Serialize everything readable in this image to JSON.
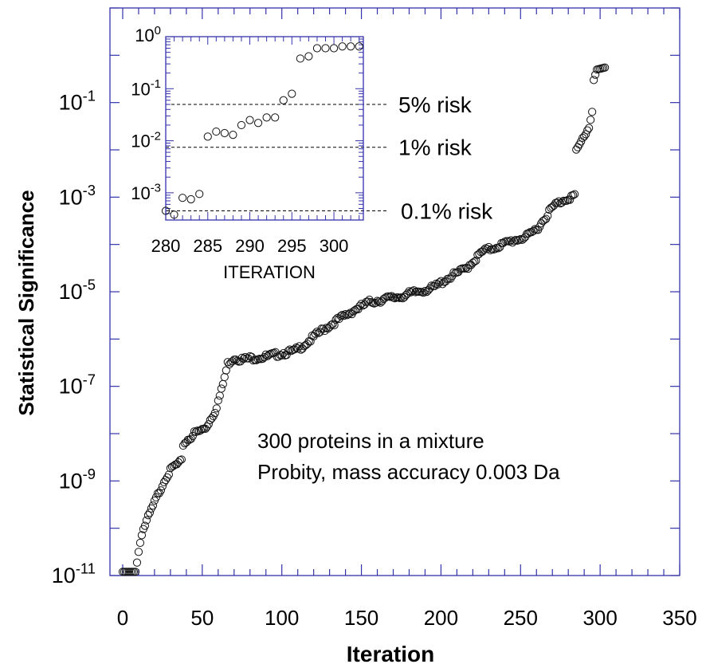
{
  "chart_data": [
    {
      "type": "scatter",
      "role": "main",
      "xlabel": "Iteration",
      "ylabel": "Statistical Significance",
      "xlim": [
        -8,
        350
      ],
      "ylim": [
        1e-11,
        10
      ],
      "yscale": "log",
      "xticks": [
        0,
        50,
        100,
        150,
        200,
        250,
        300,
        350
      ],
      "yticks": [
        {
          "base": "10",
          "exp": "-1",
          "value": 0.1
        },
        {
          "base": "10",
          "exp": "-3",
          "value": 0.001
        },
        {
          "base": "10",
          "exp": "-5",
          "value": 1e-05
        },
        {
          "base": "10",
          "exp": "-7",
          "value": 1e-07
        },
        {
          "base": "10",
          "exp": "-9",
          "value": 1e-09
        },
        {
          "base": "10",
          "exp": "-11",
          "value": 1e-11
        }
      ],
      "annotations": [
        "300 proteins in a mixture",
        "Probity, mass accuracy 0.003 Da"
      ],
      "x_knots": [
        0,
        8,
        9,
        12,
        17,
        22,
        27,
        32,
        37,
        38,
        45,
        52,
        58,
        62,
        66,
        70,
        75,
        82,
        90,
        100,
        108,
        115,
        125,
        135,
        145,
        155,
        165,
        175,
        185,
        195,
        205,
        215,
        222,
        226,
        235,
        245,
        255,
        262,
        268,
        272,
        278,
        284,
        285,
        290,
        293,
        295,
        296,
        298,
        303
      ],
      "y_knots": [
        1.2e-11,
        1.2e-11,
        2e-11,
        8e-11,
        2e-10,
        5e-10,
        1.2e-09,
        2e-09,
        2.5e-09,
        6e-09,
        1e-08,
        1.3e-08,
        3e-08,
        8e-08,
        3e-07,
        4e-07,
        3.7e-07,
        4e-07,
        4.2e-07,
        5e-07,
        5.5e-07,
        8e-07,
        1.5e-06,
        2.5e-06,
        4e-06,
        6e-06,
        7e-06,
        8e-06,
        1e-05,
        1.2e-05,
        2e-05,
        3e-05,
        5e-05,
        7e-05,
        9e-05,
        0.00012,
        0.00015,
        0.00025,
        0.0005,
        0.0007,
        0.0009,
        0.0011,
        0.009,
        0.02,
        0.03,
        0.07,
        0.3,
        0.5,
        0.55
      ]
    },
    {
      "type": "scatter",
      "role": "inset",
      "xlabel": "ITERATION",
      "ylim": [
        0.0003,
        1
      ],
      "yscale": "log",
      "xlim": [
        280,
        303.5
      ],
      "xticks": [
        280,
        285,
        290,
        295,
        300
      ],
      "yticks": [
        {
          "base": "10",
          "exp": "0",
          "value": 1
        },
        {
          "base": "10",
          "exp": "-1",
          "value": 0.1
        },
        {
          "base": "10",
          "exp": "-2",
          "value": 0.01
        },
        {
          "base": "10",
          "exp": "-3",
          "value": 0.001
        }
      ],
      "x": [
        280,
        281,
        282,
        283,
        284,
        285,
        286,
        287,
        288,
        289,
        290,
        291,
        292,
        293,
        294,
        295,
        296,
        297,
        298,
        299,
        300,
        301,
        302,
        303
      ],
      "y": [
        0.00045,
        0.00038,
        0.0008,
        0.00075,
        0.00095,
        0.012,
        0.015,
        0.014,
        0.013,
        0.02,
        0.025,
        0.022,
        0.028,
        0.028,
        0.06,
        0.08,
        0.38,
        0.42,
        0.6,
        0.6,
        0.6,
        0.65,
        0.65,
        0.65
      ],
      "reference_lines": [
        {
          "label": "5% risk",
          "value": 0.05
        },
        {
          "label": "1% risk",
          "value": 0.0075
        },
        {
          "label": "0.1% risk",
          "value": 0.00045
        }
      ]
    }
  ]
}
